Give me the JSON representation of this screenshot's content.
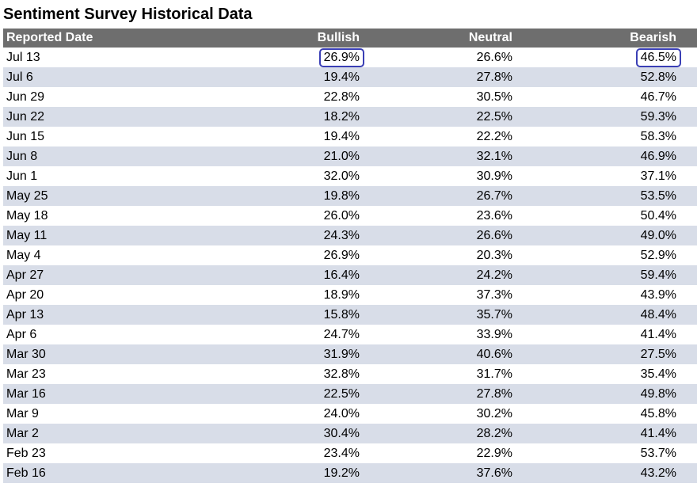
{
  "title": "Sentiment Survey Historical Data",
  "table": {
    "headers": {
      "date": "Reported Date",
      "bullish": "Bullish",
      "neutral": "Neutral",
      "bearish": "Bearish"
    },
    "rows": [
      {
        "date": "Jul 13",
        "bullish": "26.9%",
        "neutral": "26.6%",
        "bearish": "46.5%"
      },
      {
        "date": "Jul 6",
        "bullish": "19.4%",
        "neutral": "27.8%",
        "bearish": "52.8%"
      },
      {
        "date": "Jun 29",
        "bullish": "22.8%",
        "neutral": "30.5%",
        "bearish": "46.7%"
      },
      {
        "date": "Jun 22",
        "bullish": "18.2%",
        "neutral": "22.5%",
        "bearish": "59.3%"
      },
      {
        "date": "Jun 15",
        "bullish": "19.4%",
        "neutral": "22.2%",
        "bearish": "58.3%"
      },
      {
        "date": "Jun 8",
        "bullish": "21.0%",
        "neutral": "32.1%",
        "bearish": "46.9%"
      },
      {
        "date": "Jun 1",
        "bullish": "32.0%",
        "neutral": "30.9%",
        "bearish": "37.1%"
      },
      {
        "date": "May 25",
        "bullish": "19.8%",
        "neutral": "26.7%",
        "bearish": "53.5%"
      },
      {
        "date": "May 18",
        "bullish": "26.0%",
        "neutral": "23.6%",
        "bearish": "50.4%"
      },
      {
        "date": "May 11",
        "bullish": "24.3%",
        "neutral": "26.6%",
        "bearish": "49.0%"
      },
      {
        "date": "May 4",
        "bullish": "26.9%",
        "neutral": "20.3%",
        "bearish": "52.9%"
      },
      {
        "date": "Apr 27",
        "bullish": "16.4%",
        "neutral": "24.2%",
        "bearish": "59.4%"
      },
      {
        "date": "Apr 20",
        "bullish": "18.9%",
        "neutral": "37.3%",
        "bearish": "43.9%"
      },
      {
        "date": "Apr 13",
        "bullish": "15.8%",
        "neutral": "35.7%",
        "bearish": "48.4%"
      },
      {
        "date": "Apr 6",
        "bullish": "24.7%",
        "neutral": "33.9%",
        "bearish": "41.4%"
      },
      {
        "date": "Mar 30",
        "bullish": "31.9%",
        "neutral": "40.6%",
        "bearish": "27.5%"
      },
      {
        "date": "Mar 23",
        "bullish": "32.8%",
        "neutral": "31.7%",
        "bearish": "35.4%"
      },
      {
        "date": "Mar 16",
        "bullish": "22.5%",
        "neutral": "27.8%",
        "bearish": "49.8%"
      },
      {
        "date": "Mar 9",
        "bullish": "24.0%",
        "neutral": "30.2%",
        "bearish": "45.8%"
      },
      {
        "date": "Mar 2",
        "bullish": "30.4%",
        "neutral": "28.2%",
        "bearish": "41.4%"
      },
      {
        "date": "Feb 23",
        "bullish": "23.4%",
        "neutral": "22.9%",
        "bearish": "53.7%"
      },
      {
        "date": "Feb 16",
        "bullish": "19.2%",
        "neutral": "37.6%",
        "bearish": "43.2%"
      }
    ],
    "highlighted_cells": [
      {
        "row": 0,
        "column": "bullish"
      },
      {
        "row": 0,
        "column": "bearish"
      }
    ]
  },
  "colors": {
    "header_bg": "#6e6e6e",
    "stripe_bg": "#d8dde8",
    "highlight_border": "#3a3fb5"
  }
}
